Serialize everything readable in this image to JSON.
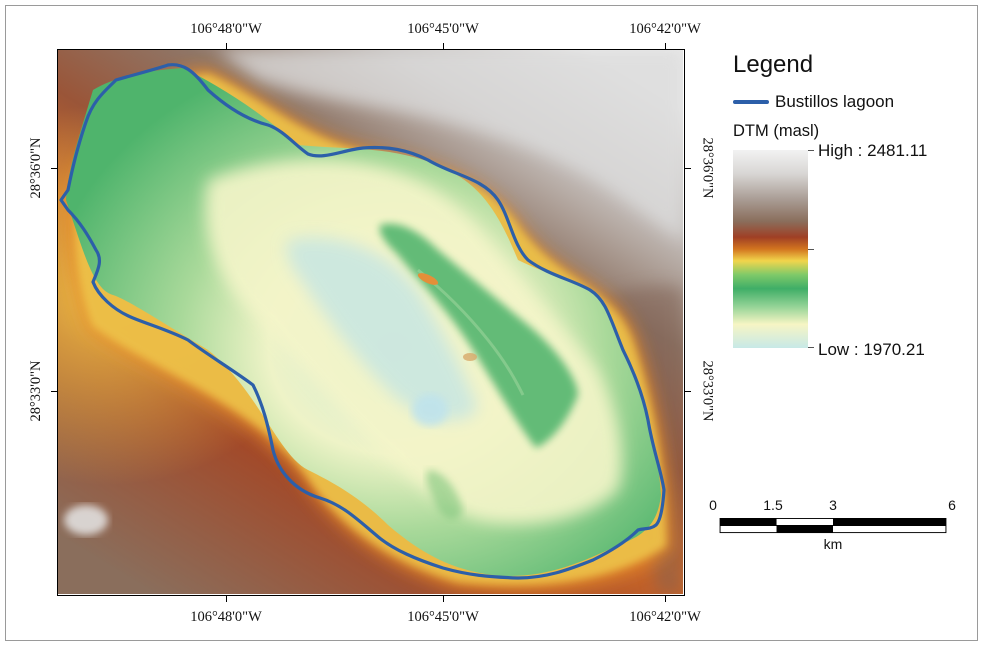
{
  "map": {
    "lon_labels": [
      "106°48'0\"W",
      "106°45'0\"W",
      "106°42'0\"W"
    ],
    "lat_labels": [
      "28°36'0\"N",
      "28°33'0\"N"
    ],
    "colors": {
      "lagoon_outline": "#2c5fa9",
      "lowland": "#f6f5c4",
      "mid_green": "#5cbb72",
      "upland_red": "#b55a2e",
      "highland_brown": "#8a6e5c",
      "peak_gray": "#dcdcdc"
    }
  },
  "legend": {
    "title": "Legend",
    "line_item": "Bustillos lagoon",
    "dtm_title": "DTM (masl)",
    "high_label": "High : 2481.11",
    "low_label": "Low : 1970.21"
  },
  "scalebar": {
    "ticks": [
      "0",
      "1.5",
      "3",
      "6"
    ],
    "unit": "km"
  }
}
